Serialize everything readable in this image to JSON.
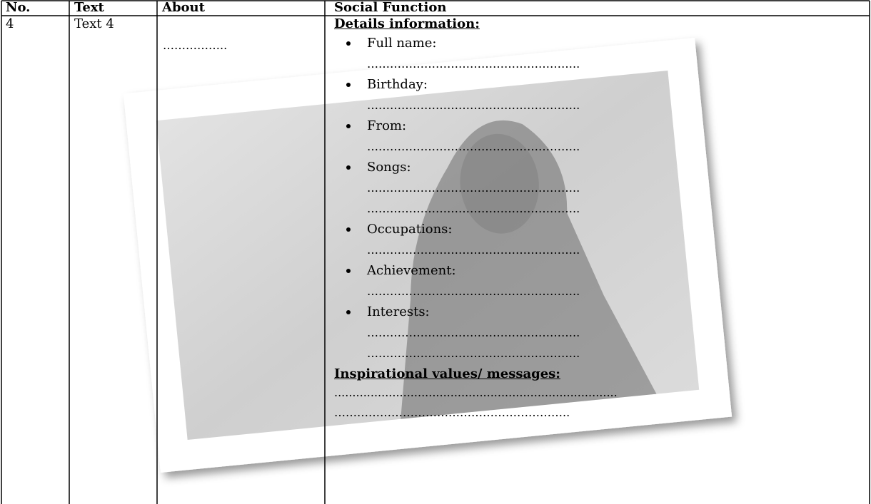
{
  "table": {
    "header": [
      "No.",
      "Text",
      "About",
      "Social Function"
    ],
    "row": {
      "no": "4",
      "text": "Text 4",
      "about": "……………..",
      "social_function": {
        "details_heading": "Details information:",
        "items": [
          {
            "label": "Full name:",
            "lines": [
              "……………………………………………….."
            ]
          },
          {
            "label": "Birthday:",
            "lines": [
              "……………………………………………….."
            ]
          },
          {
            "label": "From:",
            "lines": [
              "……………………………………………….."
            ]
          },
          {
            "label": "Songs:",
            "lines": [
              "………………………………………………..",
              "……………………………………………….."
            ]
          },
          {
            "label": "Occupations:",
            "lines": [
              "……………………………………………….."
            ]
          },
          {
            "label": "Achievement:",
            "lines": [
              "……………………………………………….."
            ]
          },
          {
            "label": "Interests:",
            "lines": [
              "………………………………………………..",
              "……………………………………………….."
            ]
          }
        ],
        "values_heading": "Inspirational values/ messages:",
        "values_lines": [
          "..............................................................................",
          "…………………………………………………….."
        ]
      }
    }
  }
}
